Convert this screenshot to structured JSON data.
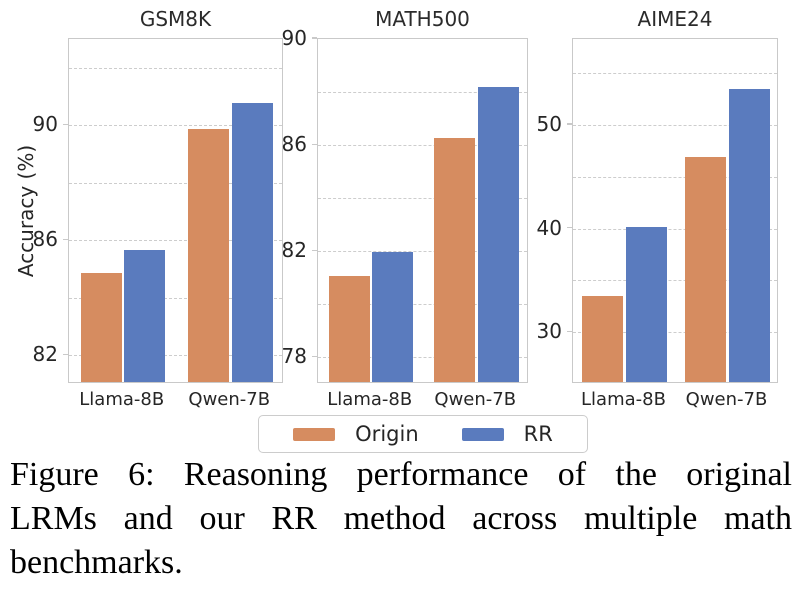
{
  "figure": {
    "ylabel": "Accuracy (%)",
    "legend": {
      "items": [
        {
          "label": "Origin",
          "color": "#D68C60"
        },
        {
          "label": "RR",
          "color": "#5A7BBE"
        }
      ],
      "position": "bottom-center"
    }
  },
  "chart_data": [
    {
      "type": "bar",
      "title": "GSM8K",
      "categories": [
        "Llama-8B",
        "Qwen-7B"
      ],
      "series": [
        {
          "name": "Origin",
          "values": [
            84.8,
            89.8
          ]
        },
        {
          "name": "RR",
          "values": [
            85.6,
            90.7
          ]
        }
      ],
      "xlabel": "",
      "ylabel": "Accuracy (%)",
      "ylim": [
        81,
        93
      ],
      "yticks": [
        82,
        86,
        90
      ],
      "gridlines": [
        82,
        84,
        86,
        88,
        90,
        92
      ],
      "grid": "dashed-horizontal"
    },
    {
      "type": "bar",
      "title": "MATH500",
      "categories": [
        "Llama-8B",
        "Qwen-7B"
      ],
      "series": [
        {
          "name": "Origin",
          "values": [
            81.0,
            86.2
          ]
        },
        {
          "name": "RR",
          "values": [
            81.9,
            88.1
          ]
        }
      ],
      "xlabel": "",
      "ylabel": "",
      "ylim": [
        77,
        90
      ],
      "yticks": [
        78,
        82,
        86,
        90
      ],
      "gridlines": [
        78,
        80,
        82,
        84,
        86,
        88,
        90
      ],
      "grid": "dashed-horizontal"
    },
    {
      "type": "bar",
      "title": "AIME24",
      "categories": [
        "Llama-8B",
        "Qwen-7B"
      ],
      "series": [
        {
          "name": "Origin",
          "values": [
            33.3,
            46.7
          ]
        },
        {
          "name": "RR",
          "values": [
            40.0,
            53.3
          ]
        }
      ],
      "xlabel": "",
      "ylabel": "",
      "ylim": [
        25,
        58.3
      ],
      "yticks": [
        30,
        40,
        50
      ],
      "gridlines": [
        30,
        35,
        40,
        45,
        50,
        55
      ],
      "grid": "dashed-horizontal"
    }
  ],
  "caption": {
    "lines": [
      "Figure 6: Reasoning performance of the original",
      "LRMs and our RR method across multiple math",
      "benchmarks."
    ],
    "text": "Figure 6: Reasoning performance of the original LRMs and our RR method across multiple math benchmarks."
  },
  "colors": {
    "origin_bar": "#D68C60",
    "rr_bar": "#5A7BBE",
    "gridline": "#CDCDCD",
    "spine": "#C9C9C9",
    "tick_text": "#262626",
    "caption_text": "#000000"
  }
}
